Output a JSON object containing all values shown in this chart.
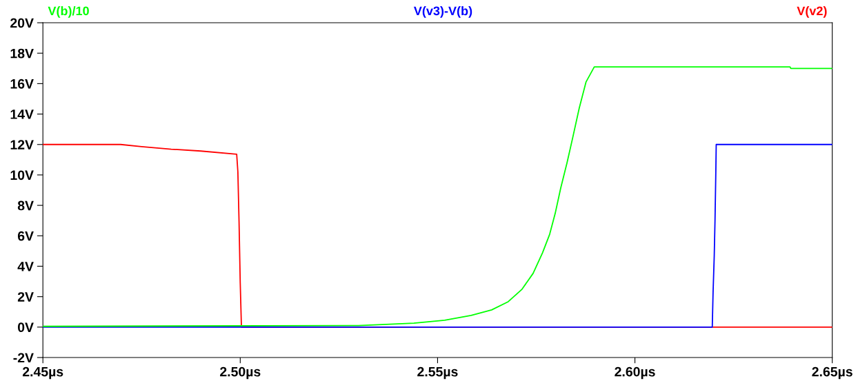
{
  "chart_data": {
    "type": "line",
    "xlim": [
      2.45,
      2.65
    ],
    "xticks": [
      {
        "value": 2.45,
        "label": "2.45µs"
      },
      {
        "value": 2.5,
        "label": "2.50µs"
      },
      {
        "value": 2.55,
        "label": "2.55µs"
      },
      {
        "value": 2.6,
        "label": "2.60µs"
      },
      {
        "value": 2.65,
        "label": "2.65µs"
      }
    ],
    "ylim": [
      -2,
      20
    ],
    "yticks": [
      {
        "value": -2,
        "label": "-2V"
      },
      {
        "value": 0,
        "label": "0V"
      },
      {
        "value": 2,
        "label": "2V"
      },
      {
        "value": 4,
        "label": "4V"
      },
      {
        "value": 6,
        "label": "6V"
      },
      {
        "value": 8,
        "label": "8V"
      },
      {
        "value": 10,
        "label": "10V"
      },
      {
        "value": 12,
        "label": "12V"
      },
      {
        "value": 14,
        "label": "14V"
      },
      {
        "value": 16,
        "label": "16V"
      },
      {
        "value": 18,
        "label": "18V"
      },
      {
        "value": 20,
        "label": "20V"
      }
    ],
    "grid": false,
    "legend": "top",
    "marker": "none",
    "line_style": "solid",
    "series": [
      {
        "name": "V(b)/10",
        "color": "#00ff00",
        "x": [
          2.45,
          2.53,
          2.544,
          2.5518,
          2.5585,
          2.5637,
          2.5679,
          2.5714,
          2.5742,
          2.5766,
          2.5784,
          2.5798,
          2.5812,
          2.5828,
          2.5842,
          2.5859,
          2.5876,
          2.5897,
          2.6393,
          2.6395,
          2.65
        ],
        "values": [
          0.05,
          0.1,
          0.26,
          0.45,
          0.77,
          1.13,
          1.67,
          2.49,
          3.53,
          4.89,
          6.1,
          7.47,
          9.14,
          10.8,
          12.4,
          14.4,
          16.1,
          17.1,
          17.1,
          17.0,
          17.0
        ]
      },
      {
        "name": "V(v3)-V(b)",
        "color": "#0000ff",
        "x": [
          2.45,
          2.6196,
          2.6198,
          2.6201,
          2.6203,
          2.6205,
          2.6206,
          2.65
        ],
        "values": [
          0,
          0,
          2.26,
          4.7,
          7.1,
          10.2,
          12,
          12
        ]
      },
      {
        "name": "V(v2)",
        "color": "#ff0000",
        "x": [
          2.45,
          2.4697,
          2.475,
          2.4825,
          2.49,
          2.4991,
          2.4994,
          2.4997,
          2.5,
          2.5003,
          2.65
        ],
        "values": [
          12,
          12,
          11.86,
          11.69,
          11.57,
          11.36,
          10.2,
          6.9,
          2.9,
          0,
          0
        ]
      }
    ]
  }
}
